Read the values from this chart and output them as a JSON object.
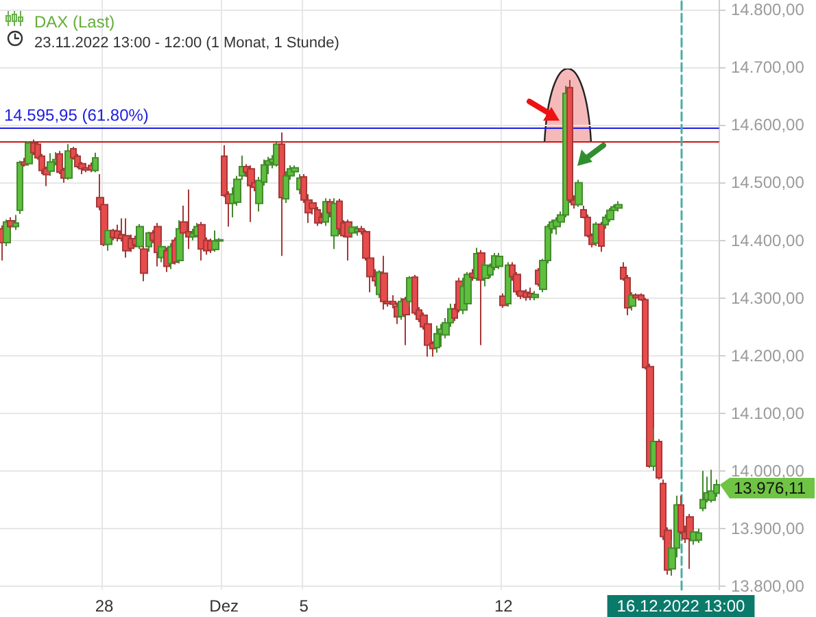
{
  "chart_data": {
    "type": "candlestick",
    "title": "DAX (Last)",
    "subtitle": "23.11.2022 13:00 - 12:00 (1 Monat, 1 Stunde)",
    "categories": [
      null,
      null,
      null,
      null,
      null,
      null,
      null,
      null,
      null,
      null,
      null,
      null,
      null,
      null,
      null,
      null,
      null,
      null,
      null,
      null,
      null,
      null,
      null,
      "28",
      null,
      null,
      null,
      null,
      null,
      null,
      null,
      null,
      null,
      null,
      null,
      null,
      null,
      null,
      null,
      null,
      null,
      null,
      null,
      null,
      null,
      null,
      null,
      null,
      null,
      null,
      "Dez",
      null,
      null,
      null,
      null,
      null,
      null,
      null,
      null,
      null,
      null,
      null,
      null,
      null,
      null,
      null,
      null,
      null,
      "5",
      null,
      null,
      null,
      null,
      null,
      null,
      null,
      null,
      null,
      null,
      null,
      null,
      null,
      null,
      null,
      null,
      null,
      null,
      null,
      null,
      null,
      null,
      null,
      null,
      null,
      null,
      null,
      null,
      null,
      null,
      null,
      null,
      null,
      null,
      null,
      null,
      null,
      null,
      null,
      null,
      null,
      null,
      null,
      null,
      "12",
      null,
      null,
      null,
      null,
      null,
      null,
      null,
      null,
      null,
      null,
      null,
      null,
      null,
      null,
      null,
      null,
      null,
      null,
      null,
      null,
      null,
      null,
      null,
      null,
      null,
      null,
      null,
      null,
      null,
      null,
      null,
      null,
      null,
      null,
      null,
      null,
      null,
      null,
      null,
      "16.12.2022 13:00",
      null,
      null,
      null,
      null,
      null,
      null,
      null,
      null
    ],
    "ohlc": [
      [
        14420,
        14426,
        14365,
        14396
      ],
      [
        14396,
        14436,
        14390,
        14432
      ],
      [
        14434,
        14440,
        14420,
        14424
      ],
      [
        14424,
        14444,
        14418,
        14430
      ],
      [
        14452,
        14538,
        14446,
        14535
      ],
      [
        14536,
        14543,
        14528,
        14531
      ],
      [
        14533,
        14572,
        14530,
        14569
      ],
      [
        14569,
        14575,
        14548,
        14552
      ],
      [
        14567,
        14570,
        14540,
        14543
      ],
      [
        14546,
        14550,
        14515,
        14521
      ],
      [
        14524,
        14528,
        14494,
        14514
      ],
      [
        14520,
        14551,
        14512,
        14536
      ],
      [
        14536,
        14553,
        14530,
        14540
      ],
      [
        14550,
        14555,
        14515,
        14518
      ],
      [
        14522,
        14526,
        14500,
        14508
      ],
      [
        14508,
        14567,
        14505,
        14555
      ],
      [
        14559,
        14562,
        14540,
        14543
      ],
      [
        14546,
        14550,
        14525,
        14528
      ],
      [
        14533,
        14536,
        14515,
        14524
      ],
      [
        14526,
        14533,
        14518,
        14522
      ],
      [
        14530,
        14535,
        14518,
        14522
      ],
      [
        14521,
        14552,
        14518,
        14543
      ],
      [
        14474,
        14515,
        14452,
        14458
      ],
      [
        14462,
        14466,
        14390,
        14393
      ],
      [
        14393,
        14420,
        14382,
        14417
      ],
      [
        14417,
        14420,
        14400,
        14405
      ],
      [
        14416,
        14427,
        14398,
        14404
      ],
      [
        14410,
        14438,
        14398,
        14403
      ],
      [
        14408,
        14438,
        14370,
        14382
      ],
      [
        14403,
        14410,
        14380,
        14386
      ],
      [
        14403,
        14408,
        14388,
        14392
      ],
      [
        14389,
        14428,
        14385,
        14424
      ],
      [
        14385,
        14390,
        14329,
        14343
      ],
      [
        14389,
        14415,
        14380,
        14413
      ],
      [
        14413,
        14418,
        14395,
        14400
      ],
      [
        14424,
        14430,
        14355,
        14379
      ],
      [
        14370,
        14395,
        14362,
        14389
      ],
      [
        14382,
        14388,
        14345,
        14355
      ],
      [
        14360,
        14395,
        14350,
        14389
      ],
      [
        14400,
        14405,
        14358,
        14362
      ],
      [
        14365,
        14435,
        14360,
        14420
      ],
      [
        14432,
        14460,
        14410,
        14413
      ],
      [
        14415,
        14488,
        14385,
        14406
      ],
      [
        14406,
        14420,
        14400,
        14412
      ],
      [
        14408,
        14430,
        14405,
        14424
      ],
      [
        14427,
        14432,
        14365,
        14385
      ],
      [
        14400,
        14405,
        14375,
        14382
      ],
      [
        14399,
        14403,
        14378,
        14383
      ],
      [
        14384,
        14417,
        14380,
        14399
      ],
      [
        14399,
        14404,
        14393,
        14401
      ],
      [
        14546,
        14565,
        14475,
        14478
      ],
      [
        14480,
        14485,
        14424,
        14464
      ],
      [
        14464,
        14492,
        14440,
        14480
      ],
      [
        14466,
        14512,
        14460,
        14506
      ],
      [
        14512,
        14547,
        14505,
        14528
      ],
      [
        14528,
        14532,
        14510,
        14518
      ],
      [
        14524,
        14530,
        14432,
        14495
      ],
      [
        14500,
        14505,
        14485,
        14492
      ],
      [
        14464,
        14510,
        14450,
        14504
      ],
      [
        14501,
        14540,
        14495,
        14531
      ],
      [
        14531,
        14545,
        14515,
        14538
      ],
      [
        14535,
        14548,
        14525,
        14541
      ],
      [
        14531,
        14570,
        14528,
        14567
      ],
      [
        14567,
        14587,
        14373,
        14474
      ],
      [
        14472,
        14520,
        14465,
        14512
      ],
      [
        14512,
        14530,
        14505,
        14524
      ],
      [
        14519,
        14530,
        14512,
        14526
      ],
      [
        14488,
        14515,
        14480,
        14508
      ],
      [
        14510,
        14515,
        14465,
        14470
      ],
      [
        14470,
        14480,
        14430,
        14448
      ],
      [
        14465,
        14470,
        14445,
        14455
      ],
      [
        14453,
        14458,
        14425,
        14430
      ],
      [
        14440,
        14448,
        14428,
        14432
      ],
      [
        14432,
        14473,
        14425,
        14467
      ],
      [
        14467,
        14472,
        14440,
        14448
      ],
      [
        14408,
        14473,
        14385,
        14464
      ],
      [
        14468,
        14472,
        14410,
        14420
      ],
      [
        14430,
        14435,
        14405,
        14408
      ],
      [
        14432,
        14436,
        14365,
        14406
      ],
      [
        14413,
        14428,
        14405,
        14423
      ],
      [
        14415,
        14425,
        14408,
        14420
      ],
      [
        14420,
        14425,
        14410,
        14415
      ],
      [
        14415,
        14418,
        14365,
        14369
      ],
      [
        14369,
        14372,
        14310,
        14337
      ],
      [
        14337,
        14350,
        14320,
        14330
      ],
      [
        14306,
        14348,
        14300,
        14345
      ],
      [
        14343,
        14373,
        14280,
        14294
      ],
      [
        14294,
        14300,
        14285,
        14290
      ],
      [
        14294,
        14305,
        14282,
        14289
      ],
      [
        14286,
        14292,
        14255,
        14267
      ],
      [
        14268,
        14300,
        14262,
        14294
      ],
      [
        14298,
        14302,
        14218,
        14271
      ],
      [
        14294,
        14338,
        14285,
        14335
      ],
      [
        14336,
        14340,
        14270,
        14274
      ],
      [
        14279,
        14284,
        14258,
        14263
      ],
      [
        14270,
        14275,
        14245,
        14250
      ],
      [
        14255,
        14260,
        14198,
        14218
      ],
      [
        14221,
        14225,
        14198,
        14212
      ],
      [
        14214,
        14252,
        14205,
        14238
      ],
      [
        14238,
        14255,
        14215,
        14246
      ],
      [
        14236,
        14265,
        14230,
        14257
      ],
      [
        14257,
        14290,
        14250,
        14281
      ],
      [
        14281,
        14290,
        14260,
        14265
      ],
      [
        14329,
        14335,
        14275,
        14279
      ],
      [
        14279,
        14335,
        14272,
        14320
      ],
      [
        14290,
        14345,
        14285,
        14341
      ],
      [
        14343,
        14350,
        14330,
        14336
      ],
      [
        14334,
        14387,
        14330,
        14377
      ],
      [
        14378,
        14383,
        14218,
        14331
      ],
      [
        14334,
        14362,
        14320,
        14357
      ],
      [
        14340,
        14360,
        14335,
        14355
      ],
      [
        14353,
        14378,
        14348,
        14373
      ],
      [
        14355,
        14378,
        14350,
        14372
      ],
      [
        14303,
        14308,
        14283,
        14287
      ],
      [
        14290,
        14362,
        14285,
        14357
      ],
      [
        14357,
        14362,
        14330,
        14337
      ],
      [
        14341,
        14345,
        14305,
        14311
      ],
      [
        14312,
        14316,
        14298,
        14303
      ],
      [
        14310,
        14315,
        14295,
        14301
      ],
      [
        14308,
        14318,
        14296,
        14302
      ],
      [
        14301,
        14312,
        14296,
        14306
      ],
      [
        14348,
        14352,
        14320,
        14324
      ],
      [
        14315,
        14368,
        14310,
        14365
      ],
      [
        14365,
        14428,
        14360,
        14424
      ],
      [
        14420,
        14436,
        14412,
        14432
      ],
      [
        14424,
        14440,
        14410,
        14435
      ],
      [
        14432,
        14450,
        14425,
        14444
      ],
      [
        14444,
        14668,
        14440,
        14655
      ],
      [
        14665,
        14678,
        14465,
        14470
      ],
      [
        14470,
        14478,
        14455,
        14462
      ],
      [
        14462,
        14505,
        14458,
        14500
      ],
      [
        14453,
        14460,
        14438,
        14440
      ],
      [
        14440,
        14445,
        14405,
        14408
      ],
      [
        14408,
        14412,
        14388,
        14393
      ],
      [
        14395,
        14432,
        14390,
        14428
      ],
      [
        14428,
        14432,
        14380,
        14390
      ],
      [
        14427,
        14445,
        14420,
        14440
      ],
      [
        14436,
        14456,
        14432,
        14452
      ],
      [
        14452,
        14462,
        14445,
        14458
      ],
      [
        14456,
        14468,
        14450,
        14462
      ],
      [
        14353,
        14362,
        14330,
        14333
      ],
      [
        14335,
        14340,
        14270,
        14283
      ],
      [
        14286,
        14310,
        14278,
        14305
      ],
      [
        14305,
        14308,
        14296,
        14300
      ],
      [
        14305,
        14308,
        14295,
        14297
      ],
      [
        14297,
        14300,
        14176,
        14179
      ],
      [
        14181,
        14186,
        14005,
        14008
      ],
      [
        14008,
        14074,
        14000,
        14051
      ],
      [
        14051,
        14055,
        13985,
        13988
      ],
      [
        13978,
        13985,
        13880,
        13886
      ],
      [
        13897,
        13902,
        13820,
        13828
      ],
      [
        13830,
        13880,
        13818,
        13866
      ],
      [
        13866,
        13957,
        13850,
        13941
      ],
      [
        13941,
        13957,
        13890,
        13894
      ],
      [
        13894,
        13905,
        13875,
        13882
      ],
      [
        13920,
        13925,
        13830,
        13882
      ],
      [
        13879,
        13898,
        13872,
        13894
      ],
      [
        13880,
        13900,
        13875,
        13892
      ],
      [
        13935,
        14000,
        13930,
        13950
      ],
      [
        13950,
        13990,
        13945,
        13962
      ],
      [
        13949,
        14002,
        13945,
        13965
      ],
      [
        13961,
        13985,
        13955,
        13976.11
      ]
    ],
    "colors": [
      "#e74c4c",
      "#5dbf3e",
      "#e74c4c",
      "#5dbf3e",
      "#5dbf3e",
      "#e74c4c",
      "#5dbf3e",
      "#e74c4c",
      "#e74c4c",
      "#e74c4c",
      "#e74c4c",
      "#5dbf3e",
      "#5dbf3e",
      "#e74c4c",
      "#e74c4c",
      "#5dbf3e",
      "#e74c4c",
      "#e74c4c",
      "#e74c4c",
      "#e74c4c",
      "#e74c4c",
      "#5dbf3e",
      "#e74c4c",
      "#e74c4c",
      "#5dbf3e",
      "#e74c4c",
      "#e74c4c",
      "#e74c4c",
      "#e74c4c",
      "#e74c4c",
      "#e74c4c",
      "#5dbf3e",
      "#e74c4c",
      "#5dbf3e",
      "#e74c4c",
      "#e74c4c",
      "#5dbf3e",
      "#e74c4c",
      "#5dbf3e",
      "#e74c4c",
      "#5dbf3e",
      "#e74c4c",
      "#e74c4c",
      "#5dbf3e",
      "#5dbf3e",
      "#e74c4c",
      "#e74c4c",
      "#e74c4c",
      "#5dbf3e",
      "#5dbf3e",
      "#e74c4c",
      "#e74c4c",
      "#5dbf3e",
      "#5dbf3e",
      "#5dbf3e",
      "#e74c4c",
      "#e74c4c",
      "#e74c4c",
      "#5dbf3e",
      "#5dbf3e",
      "#5dbf3e",
      "#5dbf3e",
      "#5dbf3e",
      "#e74c4c",
      "#5dbf3e",
      "#5dbf3e",
      "#5dbf3e",
      "#5dbf3e",
      "#e74c4c",
      "#e74c4c",
      "#e74c4c",
      "#e74c4c",
      "#e74c4c",
      "#5dbf3e",
      "#e74c4c",
      "#5dbf3e",
      "#e74c4c",
      "#e74c4c",
      "#e74c4c",
      "#5dbf3e",
      "#5dbf3e",
      "#e74c4c",
      "#e74c4c",
      "#e74c4c",
      "#e74c4c",
      "#5dbf3e",
      "#e74c4c",
      "#e74c4c",
      "#e74c4c",
      "#e74c4c",
      "#5dbf3e",
      "#e74c4c",
      "#5dbf3e",
      "#e74c4c",
      "#e74c4c",
      "#e74c4c",
      "#e74c4c",
      "#e74c4c",
      "#5dbf3e",
      "#5dbf3e",
      "#5dbf3e",
      "#5dbf3e",
      "#e74c4c",
      "#e74c4c",
      "#5dbf3e",
      "#5dbf3e",
      "#e74c4c",
      "#5dbf3e",
      "#e74c4c",
      "#5dbf3e",
      "#5dbf3e",
      "#5dbf3e",
      "#5dbf3e",
      "#e74c4c",
      "#5dbf3e",
      "#e74c4c",
      "#e74c4c",
      "#e74c4c",
      "#e74c4c",
      "#e74c4c",
      "#5dbf3e",
      "#e74c4c",
      "#5dbf3e",
      "#5dbf3e",
      "#5dbf3e",
      "#5dbf3e",
      "#5dbf3e",
      "#5dbf3e",
      "#e74c4c",
      "#e74c4c",
      "#5dbf3e",
      "#e74c4c",
      "#e74c4c",
      "#e74c4c",
      "#5dbf3e",
      "#e74c4c",
      "#5dbf3e",
      "#5dbf3e",
      "#5dbf3e",
      "#5dbf3e",
      "#e74c4c",
      "#e74c4c",
      "#5dbf3e",
      "#e74c4c",
      "#e74c4c",
      "#e74c4c",
      "#e74c4c",
      "#5dbf3e",
      "#e74c4c",
      "#e74c4c",
      "#e74c4c",
      "#5dbf3e",
      "#5dbf3e",
      "#e74c4c",
      "#e74c4c",
      "#e74c4c",
      "#5dbf3e",
      "#5dbf3e",
      "#5dbf3e",
      "#5dbf3e",
      "#5dbf3e",
      "#5dbf3e"
    ],
    "ylim": [
      13794,
      14817
    ],
    "yticks": [
      {
        "value": 13800,
        "label": "13.800,00"
      },
      {
        "value": 13900,
        "label": "13.900,00"
      },
      {
        "value": 14000,
        "label": "14.000,00"
      },
      {
        "value": 14100,
        "label": "14.100,00"
      },
      {
        "value": 14200,
        "label": "14.200,00"
      },
      {
        "value": 14300,
        "label": "14.300,00"
      },
      {
        "value": 14400,
        "label": "14.400,00"
      },
      {
        "value": 14500,
        "label": "14.500,00"
      },
      {
        "value": 14600,
        "label": "14.600,00"
      },
      {
        "value": 14700,
        "label": "14.700,00"
      },
      {
        "value": 14800,
        "label": "14.800,00"
      }
    ],
    "grid": true,
    "ref_lines": [
      {
        "axis": "y",
        "value": 14595.95,
        "label": "14.595,95 (61.80%)",
        "color": "#1c1ce0"
      },
      {
        "axis": "y",
        "value": 14572,
        "color": "#cc1414"
      },
      {
        "axis": "x",
        "value": "16.12.2022 13:00",
        "color": "#4aaea3",
        "line_style": "dashed"
      }
    ],
    "annotations": [
      "13.976,11"
    ]
  }
}
